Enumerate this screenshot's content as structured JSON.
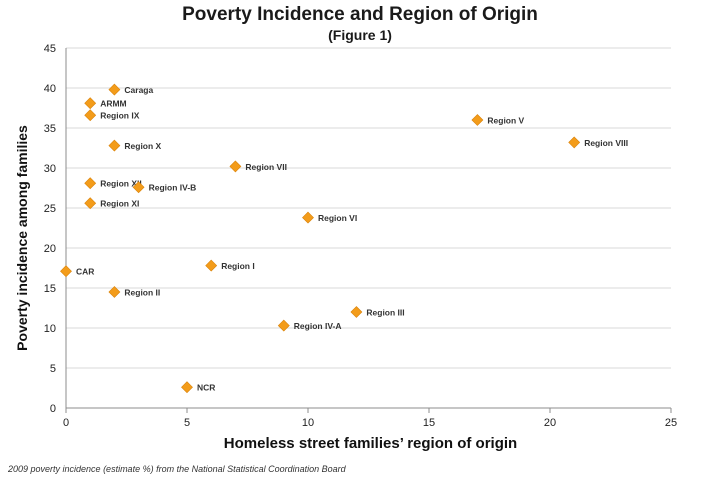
{
  "chart_data": {
    "type": "scatter",
    "title": "Poverty Incidence and Region of Origin",
    "subtitle": "(Figure 1)",
    "xlabel": "Homeless street families’ region of origin",
    "ylabel": "Poverty incidence among families",
    "xlim": [
      0,
      25
    ],
    "ylim": [
      0,
      45
    ],
    "xticks": [
      0,
      5,
      10,
      15,
      20,
      25
    ],
    "yticks": [
      0,
      5,
      10,
      15,
      20,
      25,
      30,
      35,
      40,
      45
    ],
    "grid": "horizontal",
    "marker_color": "#F39C1A",
    "points": [
      {
        "label": "Caraga",
        "x": 2,
        "y": 39.8
      },
      {
        "label": "ARMM",
        "x": 1,
        "y": 38.1
      },
      {
        "label": "Region IX",
        "x": 1,
        "y": 36.6
      },
      {
        "label": "Region V",
        "x": 17,
        "y": 36.0
      },
      {
        "label": "Region VIII",
        "x": 21,
        "y": 33.2
      },
      {
        "label": "Region X",
        "x": 2,
        "y": 32.8
      },
      {
        "label": "Region VII",
        "x": 7,
        "y": 30.2
      },
      {
        "label": "Region XII",
        "x": 1,
        "y": 28.1
      },
      {
        "label": "Region IV-B",
        "x": 3,
        "y": 27.6
      },
      {
        "label": "Region XI",
        "x": 1,
        "y": 25.6
      },
      {
        "label": "Region VI",
        "x": 10,
        "y": 23.8
      },
      {
        "label": "Region I",
        "x": 6,
        "y": 17.8
      },
      {
        "label": "CAR",
        "x": 0,
        "y": 17.1
      },
      {
        "label": "Region II",
        "x": 2,
        "y": 14.5
      },
      {
        "label": "Region III",
        "x": 12,
        "y": 12.0
      },
      {
        "label": "Region IV-A",
        "x": 9,
        "y": 10.3
      },
      {
        "label": "NCR",
        "x": 5,
        "y": 2.6
      }
    ]
  },
  "footnote": "2009 poverty incidence (estimate %) from the National Statistical Coordination Board"
}
